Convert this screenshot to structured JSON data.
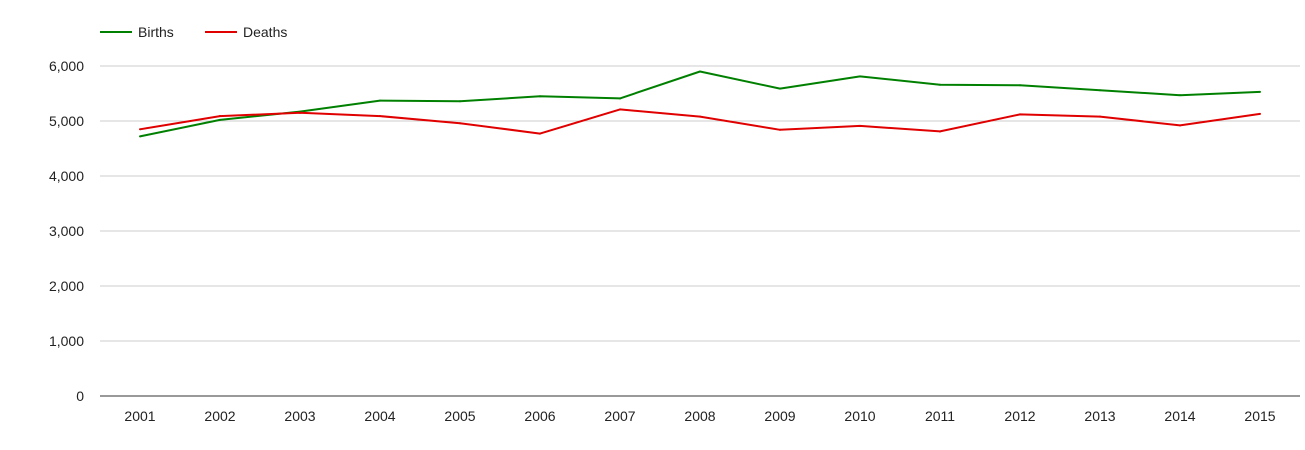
{
  "chart_data": {
    "type": "line",
    "title": "",
    "xlabel": "",
    "ylabel": "",
    "x": [
      "2001",
      "2002",
      "2003",
      "2004",
      "2005",
      "2006",
      "2007",
      "2008",
      "2009",
      "2010",
      "2011",
      "2012",
      "2013",
      "2014",
      "2015"
    ],
    "series": [
      {
        "name": "Births",
        "color": "#008000",
        "values": [
          4720,
          5020,
          5170,
          5370,
          5360,
          5450,
          5410,
          5900,
          5590,
          5810,
          5660,
          5650,
          5560,
          5470,
          5530
        ]
      },
      {
        "name": "Deaths",
        "color": "#e00000",
        "values": [
          4850,
          5090,
          5150,
          5090,
          4960,
          4770,
          5210,
          5080,
          4840,
          4910,
          4810,
          5120,
          5080,
          4920,
          5130
        ]
      }
    ],
    "ylim": [
      0,
      6000
    ],
    "y_ticks": [
      {
        "value": 0,
        "label": "0"
      },
      {
        "value": 1000,
        "label": "1,000"
      },
      {
        "value": 2000,
        "label": "2,000"
      },
      {
        "value": 3000,
        "label": "3,000"
      },
      {
        "value": 4000,
        "label": "4,000"
      },
      {
        "value": 5000,
        "label": "5,000"
      },
      {
        "value": 6000,
        "label": "6,000"
      }
    ],
    "grid": true,
    "legend_position": "top-left"
  }
}
